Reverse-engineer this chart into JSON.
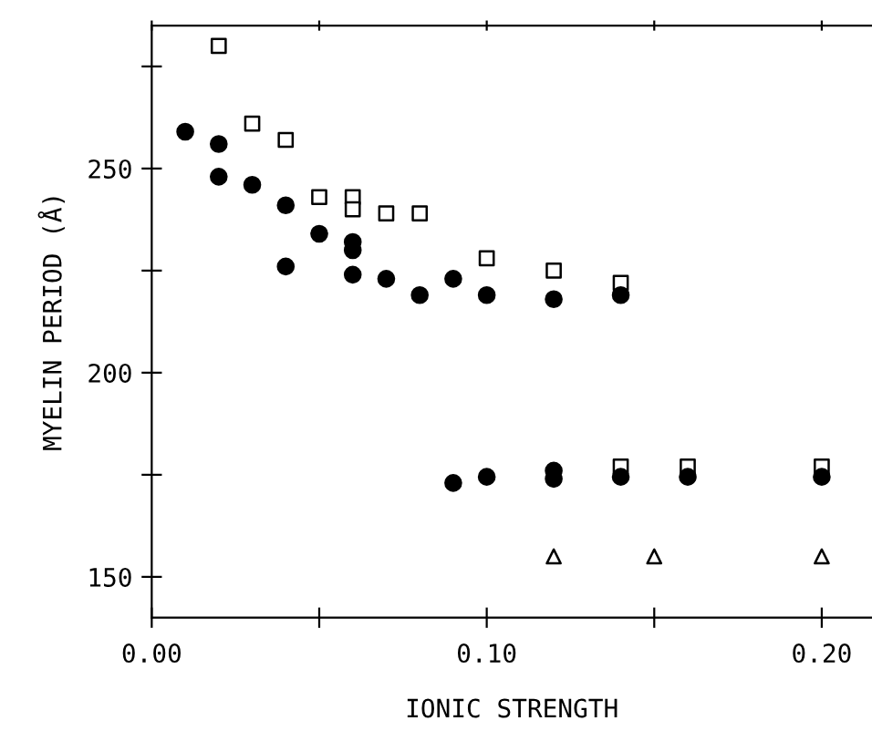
{
  "chart_data": {
    "type": "scatter",
    "xlabel": "IONIC STRENGTH",
    "ylabel": "MYELIN PERIOD (Å)",
    "xlim": [
      0,
      0.215
    ],
    "ylim": [
      140,
      285
    ],
    "xticks": [
      {
        "value": 0,
        "label": "0.00"
      },
      {
        "value": 0.05,
        "label": null
      },
      {
        "value": 0.1,
        "label": "0.10"
      },
      {
        "value": 0.15,
        "label": null
      },
      {
        "value": 0.2,
        "label": "0.20"
      }
    ],
    "yticks": [
      150,
      {
        "value": 175,
        "label": null
      },
      200,
      {
        "value": 225,
        "label": null
      },
      250,
      {
        "value": 275,
        "label": null
      }
    ],
    "grid": false,
    "legend": false,
    "series": [
      {
        "color": "#000000",
        "marker": "circle",
        "x": [
          0.01,
          0.02,
          0.02,
          0.03,
          0.04,
          0.04,
          0.05,
          0.06,
          0.06,
          0.06,
          0.07,
          0.08,
          0.09,
          0.1,
          0.12,
          0.14,
          0.09,
          0.1,
          0.12,
          0.12,
          0.14,
          0.16,
          0.2
        ],
        "values": [
          259,
          256,
          248,
          246,
          241,
          226,
          234,
          232,
          230,
          224,
          223,
          219,
          223,
          219,
          218,
          219,
          173,
          174.5,
          176,
          174,
          174.5,
          174.5,
          174.5
        ]
      },
      {
        "color": "#000000",
        "marker": "square",
        "x": [
          0.02,
          0.03,
          0.04,
          0.05,
          0.06,
          0.06,
          0.07,
          0.08,
          0.1,
          0.12,
          0.14,
          0.14,
          0.16,
          0.2
        ],
        "values": [
          280,
          261,
          257,
          243,
          243,
          240,
          239,
          239,
          228,
          225,
          222,
          177,
          177,
          177
        ]
      },
      {
        "color": "#000000",
        "marker": "triangle",
        "x": [
          0.12,
          0.15,
          0.2
        ],
        "values": [
          155,
          155,
          155
        ]
      }
    ]
  }
}
